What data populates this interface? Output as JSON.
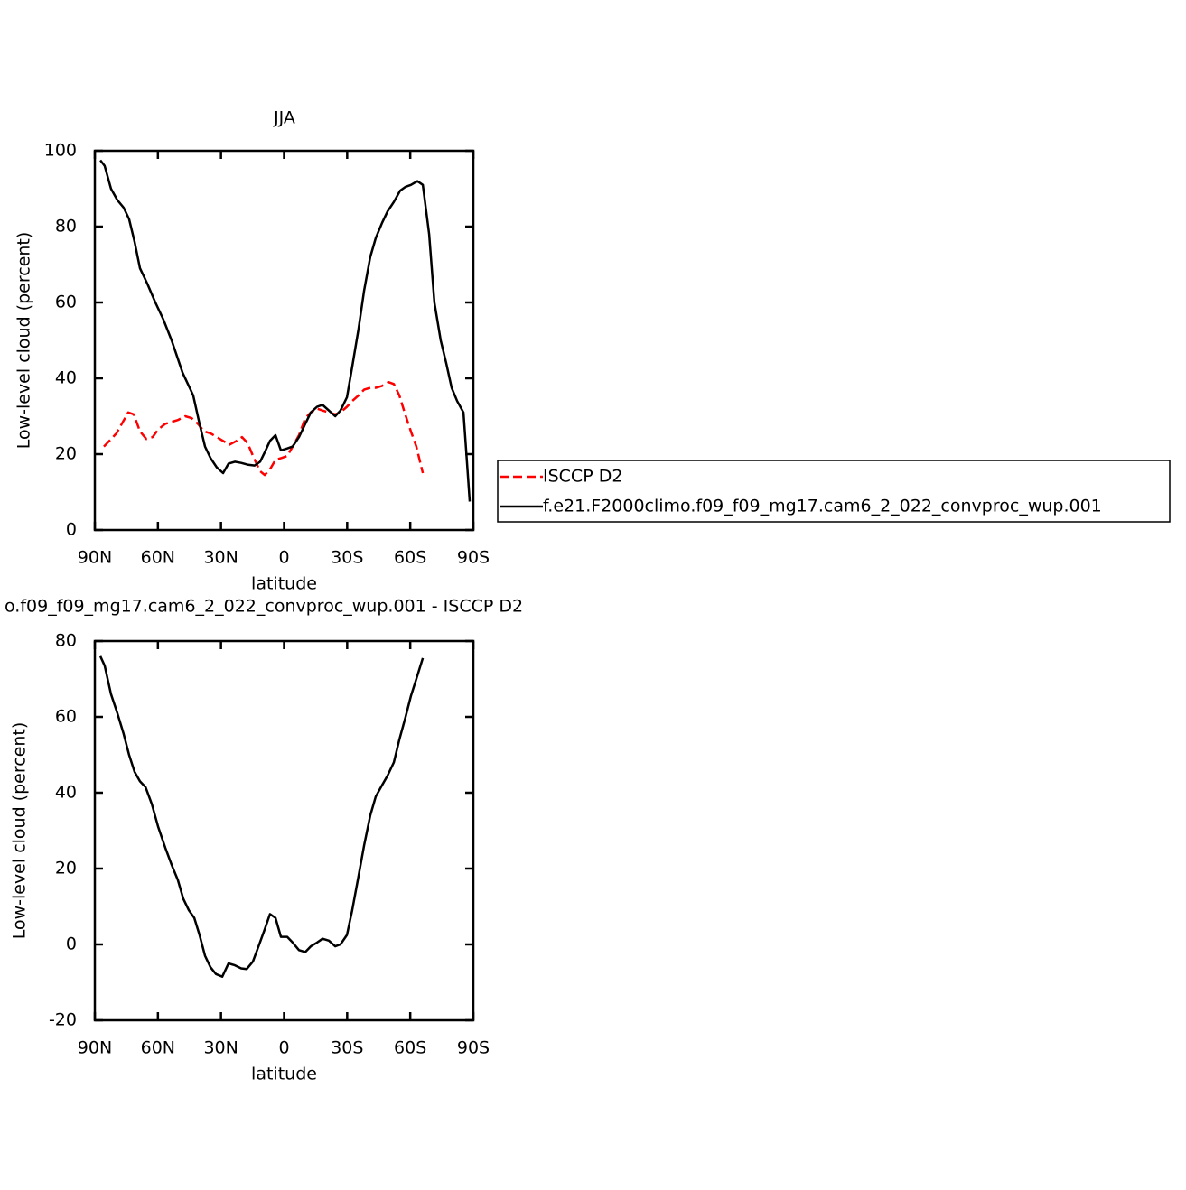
{
  "chart_data": [
    {
      "type": "line",
      "title": "JJA",
      "xlabel": "latitude",
      "ylabel": "Low-level cloud (percent)",
      "xlim": [
        90,
        -90
      ],
      "ylim": [
        0,
        100
      ],
      "xticks": [
        {
          "value": 90,
          "label": "90N"
        },
        {
          "value": 60,
          "label": "60N"
        },
        {
          "value": 30,
          "label": "30N"
        },
        0,
        {
          "value": -30,
          "label": "30S"
        },
        {
          "value": -60,
          "label": "60S"
        },
        {
          "value": -90,
          "label": "90S"
        }
      ],
      "yticks": [
        0,
        20,
        40,
        60,
        80,
        100
      ],
      "legend": "right",
      "series": [
        {
          "name": "ISCCP D2",
          "color": "#ff0000",
          "dash": true,
          "x": [
            85.7,
            83.1,
            79.7,
            76.7,
            74.1,
            71.5,
            68.5,
            65.5,
            62.5,
            59.9,
            56.5,
            53.5,
            50.5,
            47.0,
            44.0,
            41.0,
            38.0,
            35.0,
            32.0,
            29.0,
            26.0,
            22.6,
            20.0,
            17.4,
            14.4,
            11.4,
            9.2,
            6.7,
            4.1,
            1.1,
            -1.5,
            -4.1,
            -7.1,
            -10.1,
            -12.7,
            -15.7,
            -18.3,
            -21.3,
            -24.3,
            -26.8,
            -29.9,
            -32.4,
            -35.4,
            -38.0,
            -41.0,
            -43.6,
            -46.6,
            -49.6,
            -52.2,
            -54.8,
            -57.3,
            -60.3,
            -62.9,
            -66.0
          ],
          "values": [
            22,
            23.5,
            25.5,
            28.5,
            31,
            30.5,
            26,
            24,
            24.5,
            26.5,
            28,
            28.5,
            29,
            30,
            29.5,
            28,
            26,
            25.5,
            24.5,
            23.5,
            22.5,
            23.5,
            24.5,
            23,
            19,
            15.5,
            14.5,
            16,
            18.5,
            19,
            19.5,
            22,
            25,
            29.5,
            31,
            32,
            31.5,
            31,
            30.5,
            31,
            32.5,
            34,
            35.5,
            37,
            37.5,
            37.5,
            38,
            39,
            38.5,
            35.5,
            31,
            26,
            22,
            15
          ]
        },
        {
          "name": "f.e21.F2000climo.f09_f09_mg17.cam6_2_022_convproc_wup.001",
          "color": "#000000",
          "dash": false,
          "x": [
            87.4,
            85.3,
            82.3,
            79.3,
            76.3,
            73.7,
            71.1,
            68.5,
            65.1,
            61.2,
            57.4,
            53.5,
            48.3,
            43.2,
            40.2,
            37.6,
            35.0,
            32.0,
            29.0,
            26.4,
            23.4,
            20.4,
            17.0,
            14.0,
            11.4,
            9.2,
            6.7,
            4.1,
            1.5,
            -1.5,
            -4.1,
            -7.1,
            -10.1,
            -12.7,
            -15.7,
            -18.3,
            -21.3,
            -24.3,
            -26.8,
            -29.9,
            -32.4,
            -35.4,
            -38.0,
            -41.0,
            -43.6,
            -46.6,
            -49.2,
            -52.2,
            -55.2,
            -57.8,
            -60.3,
            -63.4,
            -66.0,
            -69.0,
            -71.5,
            -74.5,
            -77.1,
            -79.7,
            -82.3,
            -85.3,
            -88.3
          ],
          "values": [
            97.5,
            96,
            90,
            87,
            85,
            82,
            76,
            69,
            65,
            60,
            55.5,
            50,
            41.5,
            35.5,
            28,
            22,
            19,
            16.5,
            15,
            17.5,
            18,
            17.7,
            17.2,
            17,
            18,
            20.5,
            23.5,
            25,
            21,
            21.5,
            22,
            24.5,
            28,
            31,
            32.5,
            33,
            31.5,
            30,
            31.5,
            35,
            43,
            53,
            63,
            72,
            77,
            81,
            84,
            86.5,
            89.5,
            90.5,
            91,
            92,
            91,
            78,
            60,
            50,
            44,
            37.5,
            34,
            31,
            7.5
          ]
        }
      ]
    },
    {
      "type": "line",
      "title": "o.f09_f09_mg17.cam6_2_022_convproc_wup.001 - ISCCP D2",
      "xlabel": "latitude",
      "ylabel": "Low-level cloud (percent)",
      "xlim": [
        90,
        -90
      ],
      "ylim": [
        -20,
        80
      ],
      "xticks": [
        {
          "value": 90,
          "label": "90N"
        },
        {
          "value": 60,
          "label": "60N"
        },
        {
          "value": 30,
          "label": "30N"
        },
        0,
        {
          "value": -30,
          "label": "30S"
        },
        {
          "value": -60,
          "label": "60S"
        },
        {
          "value": -90,
          "label": "90S"
        }
      ],
      "yticks": [
        -20,
        0,
        20,
        40,
        60,
        80
      ],
      "series": [
        {
          "color": "#000000",
          "dash": false,
          "x": [
            87.4,
            85.3,
            82.3,
            79.3,
            76.3,
            73.7,
            71.1,
            68.5,
            65.9,
            62.9,
            59.9,
            56.5,
            53.5,
            50.5,
            47.9,
            45.3,
            42.7,
            40.2,
            37.6,
            35.0,
            32.4,
            29.4,
            26.4,
            23.4,
            20.4,
            17.8,
            14.8,
            11.8,
            9.2,
            6.7,
            4.1,
            1.5,
            -1.5,
            -4.1,
            -7.1,
            -10.1,
            -12.7,
            -15.7,
            -18.3,
            -21.3,
            -24.3,
            -26.8,
            -29.9,
            -32.4,
            -35.4,
            -38.0,
            -41.0,
            -43.6,
            -46.6,
            -49.2,
            -52.2,
            -54.8,
            -57.8,
            -60.3,
            -62.9,
            -66.0
          ],
          "values": [
            76,
            73.5,
            66,
            61,
            55.5,
            50,
            45.5,
            43,
            41.5,
            37,
            31,
            25.5,
            21,
            17,
            12,
            9,
            7,
            2.5,
            -3,
            -6,
            -7.8,
            -8.5,
            -5,
            -5.5,
            -6.3,
            -6.5,
            -4.5,
            0,
            4,
            8,
            7,
            2,
            2,
            0.5,
            -1.5,
            -2,
            -0.5,
            0.5,
            1.5,
            1,
            -0.5,
            0,
            2.5,
            9,
            18,
            26,
            34,
            39,
            42,
            44.5,
            48,
            54,
            60,
            65.5,
            70,
            75.5
          ]
        }
      ]
    }
  ]
}
